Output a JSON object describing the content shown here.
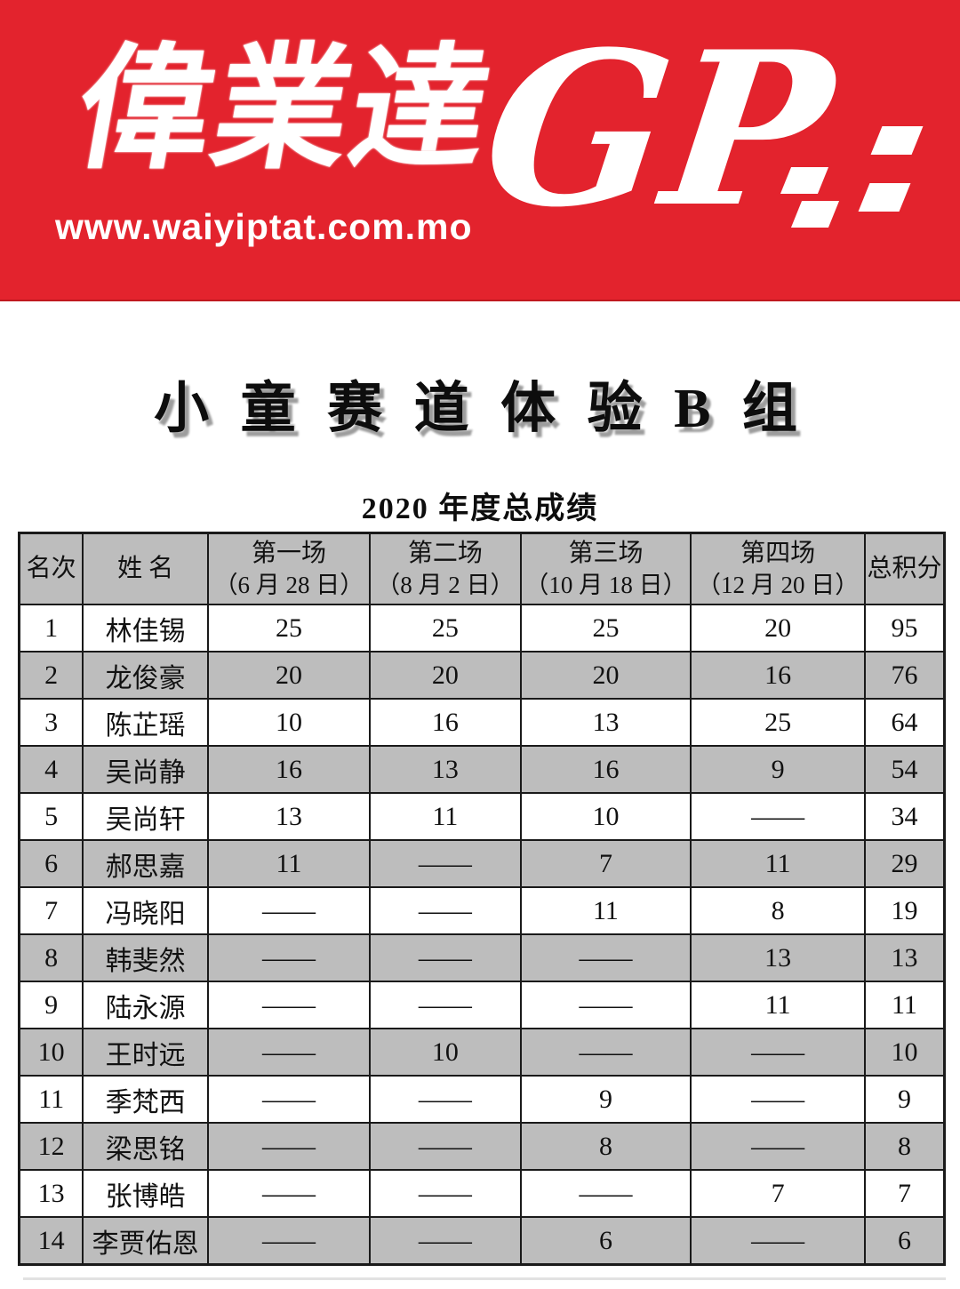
{
  "banner": {
    "background_color": "#e3232d",
    "brand_chinese": "偉業達",
    "brand_latin": "GP",
    "website": "www.waiyiptat.com.mo"
  },
  "page": {
    "title": "小 童 赛 道 体 验 B 组",
    "subtitle": "2020 年度总成绩"
  },
  "table": {
    "colors": {
      "header_bg": "#bdbdbd",
      "alt_row_bg": "#bdbdbd",
      "row_bg": "#ffffff",
      "border": "#1a1a1a"
    },
    "columns": [
      "名次",
      "姓  名",
      "第一场",
      "第二场",
      "第三场",
      "第四场",
      "总积分"
    ],
    "column_sublabels": [
      "",
      "",
      "（6 月 28 日）",
      "（8 月 2 日）",
      "（10 月 18 日）",
      "（12 月 20 日）",
      ""
    ],
    "rows": [
      [
        "1",
        "林佳锡",
        "25",
        "25",
        "25",
        "20",
        "95"
      ],
      [
        "2",
        "龙俊豪",
        "20",
        "20",
        "20",
        "16",
        "76"
      ],
      [
        "3",
        "陈芷瑶",
        "10",
        "16",
        "13",
        "25",
        "64"
      ],
      [
        "4",
        "吴尚静",
        "16",
        "13",
        "16",
        "9",
        "54"
      ],
      [
        "5",
        "吴尚轩",
        "13",
        "11",
        "10",
        "——",
        "34"
      ],
      [
        "6",
        "郝思嘉",
        "11",
        "——",
        "7",
        "11",
        "29"
      ],
      [
        "7",
        "冯晓阳",
        "——",
        "——",
        "11",
        "8",
        "19"
      ],
      [
        "8",
        "韩斐然",
        "——",
        "——",
        "——",
        "13",
        "13"
      ],
      [
        "9",
        "陆永源",
        "——",
        "——",
        "——",
        "11",
        "11"
      ],
      [
        "10",
        "王时远",
        "——",
        "10",
        "——",
        "——",
        "10"
      ],
      [
        "11",
        "季梵西",
        "——",
        "——",
        "9",
        "——",
        "9"
      ],
      [
        "12",
        "梁思铭",
        "——",
        "——",
        "8",
        "——",
        "8"
      ],
      [
        "13",
        "张博皓",
        "——",
        "——",
        "——",
        "7",
        "7"
      ],
      [
        "14",
        "李贾佑恩",
        "——",
        "——",
        "6",
        "——",
        "6"
      ]
    ]
  }
}
